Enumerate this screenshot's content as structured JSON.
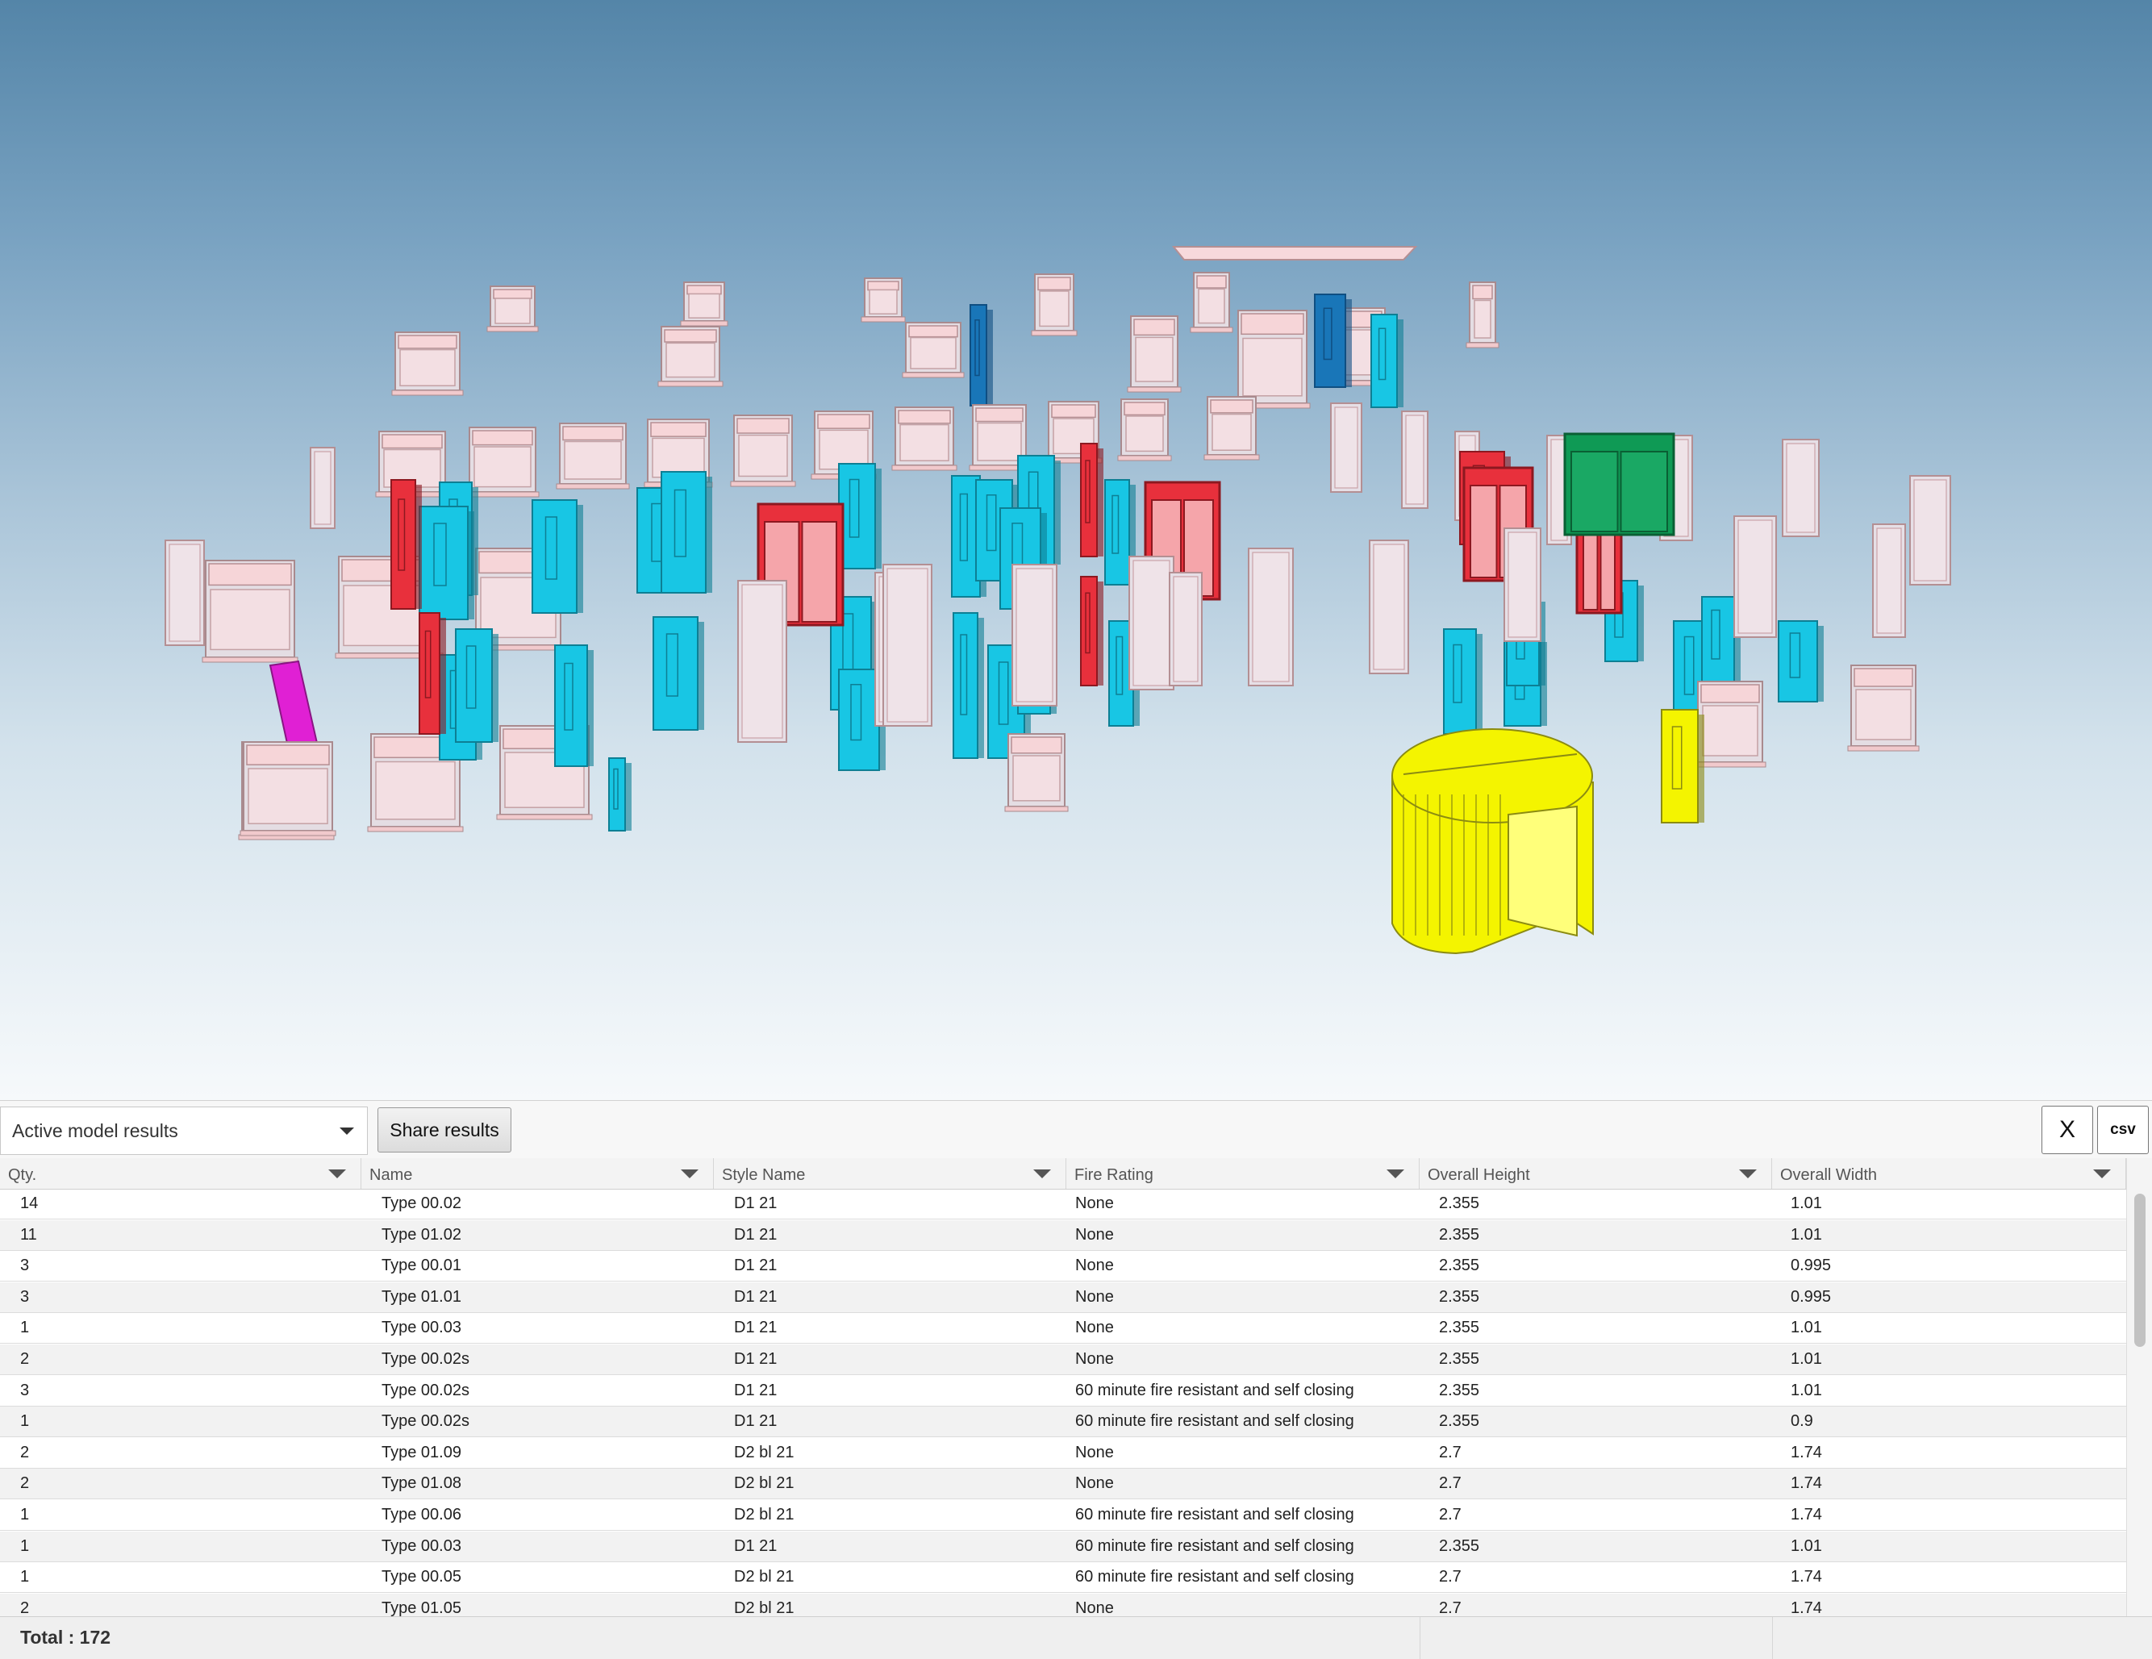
{
  "viewer": {
    "colors": {
      "frame_default": "#f2c9cc",
      "fire_rated": "#e8303c",
      "door_cyan": "#18c6e4",
      "door_blue": "#1976b8",
      "double_green": "#0f9a55",
      "magenta": "#e020d4",
      "revolving_yellow": "#f4f400"
    }
  },
  "toolbar": {
    "model_select_value": "Active model results",
    "share_label": "Share results",
    "close_label": "X",
    "csv_label": "csv"
  },
  "grid": {
    "columns": [
      "Qty.",
      "Name",
      "Style Name",
      "Fire Rating",
      "Overall Height",
      "Overall Width"
    ],
    "rows": [
      [
        "14",
        "Type 00.02",
        "D1 21",
        "None",
        "2.355",
        "1.01"
      ],
      [
        "11",
        "Type 01.02",
        "D1 21",
        "None",
        "2.355",
        "1.01"
      ],
      [
        "3",
        "Type 00.01",
        "D1 21",
        "None",
        "2.355",
        "0.995"
      ],
      [
        "3",
        "Type 01.01",
        "D1 21",
        "None",
        "2.355",
        "0.995"
      ],
      [
        "1",
        "Type 00.03",
        "D1 21",
        "None",
        "2.355",
        "1.01"
      ],
      [
        "2",
        "Type 00.02s",
        "D1 21",
        "None",
        "2.355",
        "1.01"
      ],
      [
        "3",
        "Type 00.02s",
        "D1 21",
        "60 minute fire resistant and self closing",
        "2.355",
        "1.01"
      ],
      [
        "1",
        "Type 00.02s",
        "D1 21",
        "60 minute fire resistant and self closing",
        "2.355",
        "0.9"
      ],
      [
        "2",
        "Type 01.09",
        "D2 bl 21",
        "None",
        "2.7",
        "1.74"
      ],
      [
        "2",
        "Type 01.08",
        "D2 bl 21",
        "None",
        "2.7",
        "1.74"
      ],
      [
        "1",
        "Type 00.06",
        "D2 bl 21",
        "60 minute fire resistant and self closing",
        "2.7",
        "1.74"
      ],
      [
        "1",
        "Type 00.03",
        "D1 21",
        "60 minute fire resistant and self closing",
        "2.355",
        "1.01"
      ],
      [
        "1",
        "Type 00.05",
        "D2 bl 21",
        "60 minute fire resistant and self closing",
        "2.7",
        "1.74"
      ],
      [
        "2",
        "Type 01.05",
        "D2 bl 21",
        "None",
        "2.7",
        "1.74"
      ]
    ]
  },
  "footer": {
    "total_label": "Total : 172"
  }
}
